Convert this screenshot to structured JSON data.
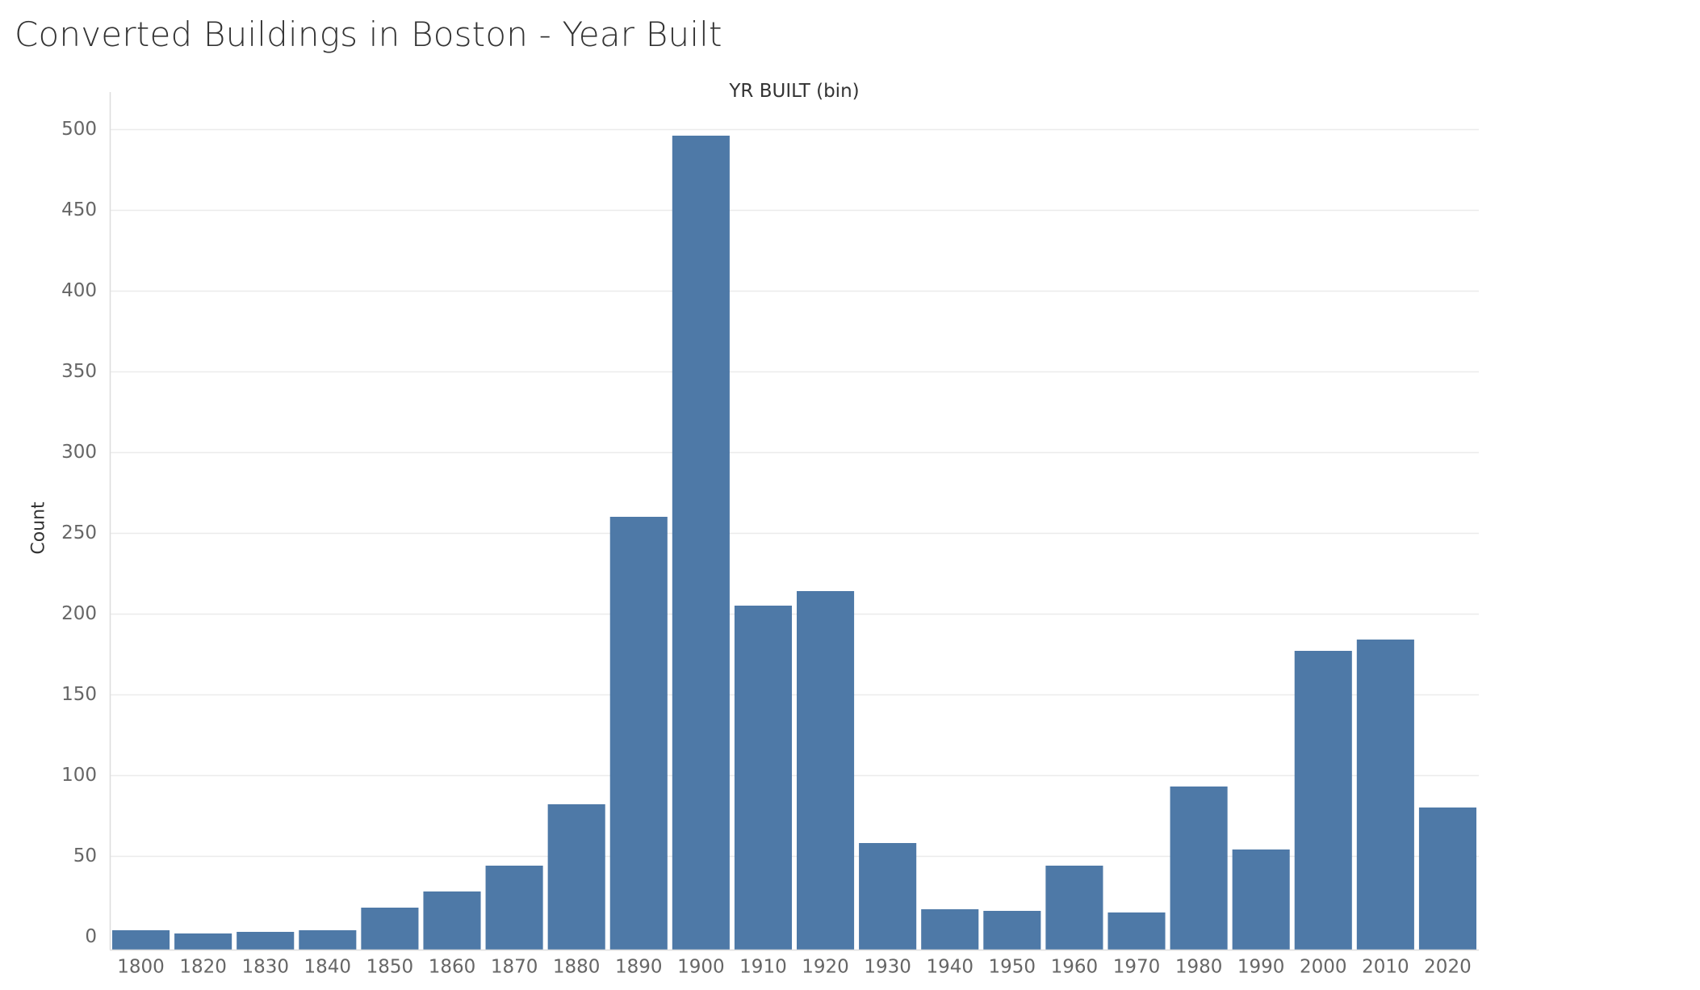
{
  "title": "Converted Buildings in Boston - Year Built",
  "chart_data": {
    "type": "bar",
    "title": "Converted Buildings in Boston - Year Built",
    "xlabel": "YR BUILT (bin)",
    "ylabel": "Count",
    "categories": [
      "1800",
      "1820",
      "1830",
      "1840",
      "1850",
      "1860",
      "1870",
      "1880",
      "1890",
      "1900",
      "1910",
      "1920",
      "1930",
      "1940",
      "1950",
      "1960",
      "1970",
      "1980",
      "1990",
      "2000",
      "2010",
      "2020"
    ],
    "values": [
      4,
      2,
      3,
      4,
      18,
      28,
      44,
      82,
      260,
      496,
      205,
      214,
      58,
      17,
      16,
      44,
      15,
      93,
      54,
      177,
      184,
      80
    ],
    "ylim": [
      -8,
      520
    ],
    "yticks": [
      0,
      50,
      100,
      150,
      200,
      250,
      300,
      350,
      400,
      450,
      500
    ],
    "grid": true,
    "bar_color": "#4e79a7",
    "grid_color": "#ebebeb",
    "axis_color": "#dddddd",
    "tick_label_color": "#666666"
  }
}
